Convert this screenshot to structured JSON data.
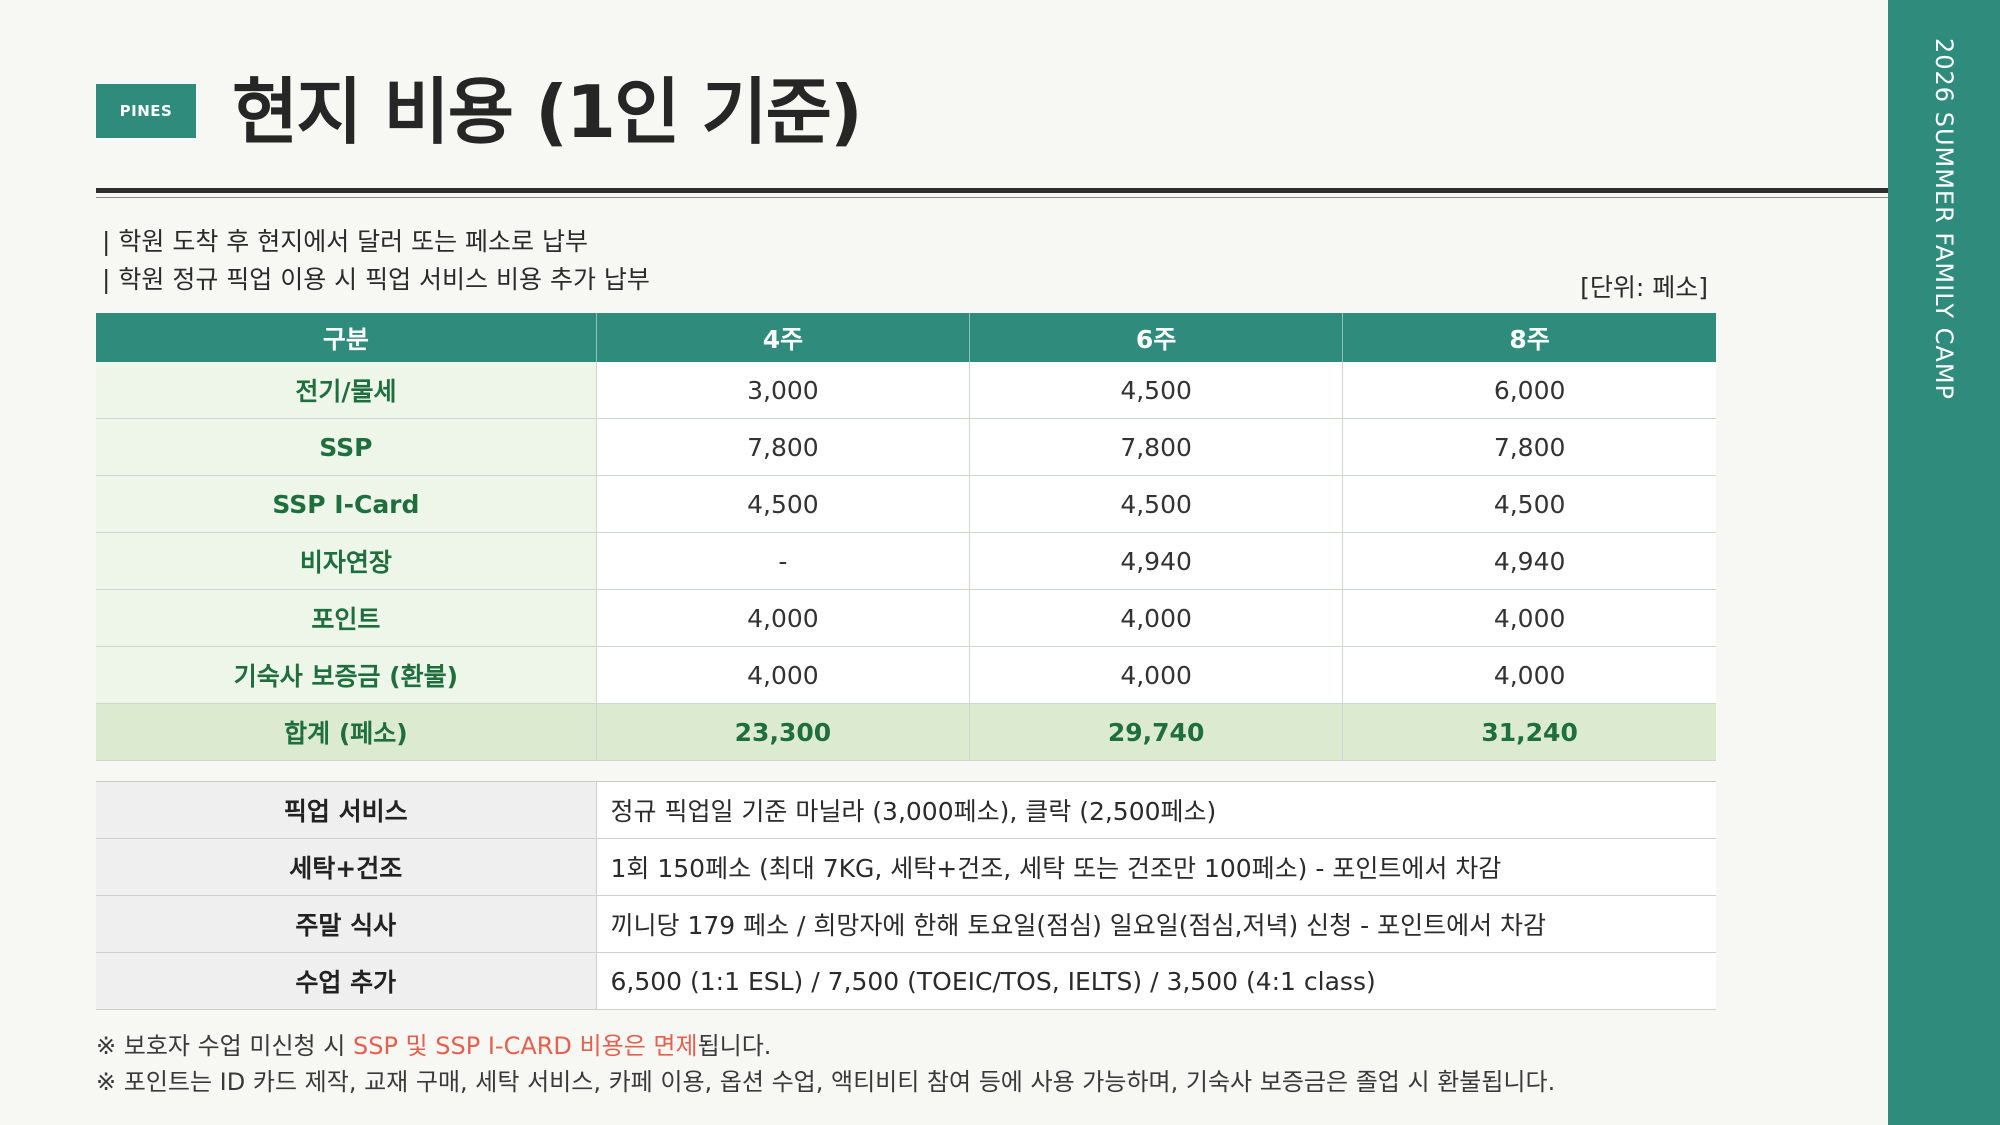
{
  "brand": {
    "logo_text": "PINES",
    "accent_color": "#2f8b7c"
  },
  "header": {
    "title": "현지 비용 (1인 기준)"
  },
  "side_band": {
    "text": "2026 SUMMER FAMILY CAMP"
  },
  "notes": [
    "| 학원 도착 후 현지에서 달러 또는 페소로 납부",
    "| 학원 정규 픽업 이용 시 픽업 서비스 비용 추가 납부"
  ],
  "unit_label": "[단위: 페소]",
  "cost_table": {
    "headers": [
      "구분",
      "4주",
      "6주",
      "8주"
    ],
    "rows": [
      {
        "label": "전기/물세",
        "values": [
          "3,000",
          "4,500",
          "6,000"
        ]
      },
      {
        "label": "SSP",
        "values": [
          "7,800",
          "7,800",
          "7,800"
        ]
      },
      {
        "label": "SSP I-Card",
        "values": [
          "4,500",
          "4,500",
          "4,500"
        ]
      },
      {
        "label": "비자연장",
        "values": [
          "-",
          "4,940",
          "4,940"
        ]
      },
      {
        "label": "포인트",
        "values": [
          "4,000",
          "4,000",
          "4,000"
        ]
      },
      {
        "label": "기숙사 보증금 (환불)",
        "values": [
          "4,000",
          "4,000",
          "4,000"
        ]
      }
    ],
    "total": {
      "label": "합계 (페소)",
      "values": [
        "23,300",
        "29,740",
        "31,240"
      ]
    }
  },
  "extra_table": [
    {
      "label": "픽업 서비스",
      "desc": "정규 픽업일 기준 마닐라 (3,000페소), 클락 (2,500페소)"
    },
    {
      "label": "세탁+건조",
      "desc": "1회 150페소 (최대 7KG, 세탁+건조, 세탁 또는 건조만 100페소) - 포인트에서 차감"
    },
    {
      "label": "주말 식사",
      "desc": "끼니당 179 페소 / 희망자에 한해 토요일(점심) 일요일(점심,저녁) 신청 - 포인트에서 차감"
    },
    {
      "label": "수업 추가",
      "desc": "6,500 (1:1 ESL) / 7,500 (TOEIC/TOS, IELTS) / 3,500 (4:1 class)"
    }
  ],
  "footnotes": {
    "line1_prefix": "※ 보호자 수업 미신청 시 ",
    "line1_highlight": "SSP 및 SSP I-CARD 비용은 면제",
    "line1_suffix": "됩니다.",
    "line2": "※ 포인트는 ID 카드 제작, 교재 구매, 세탁 서비스, 카페 이용, 옵션 수업, 액티비티 참여 등에 사용 가능하며, 기숙사 보증금은 졸업 시 환불됩니다."
  }
}
